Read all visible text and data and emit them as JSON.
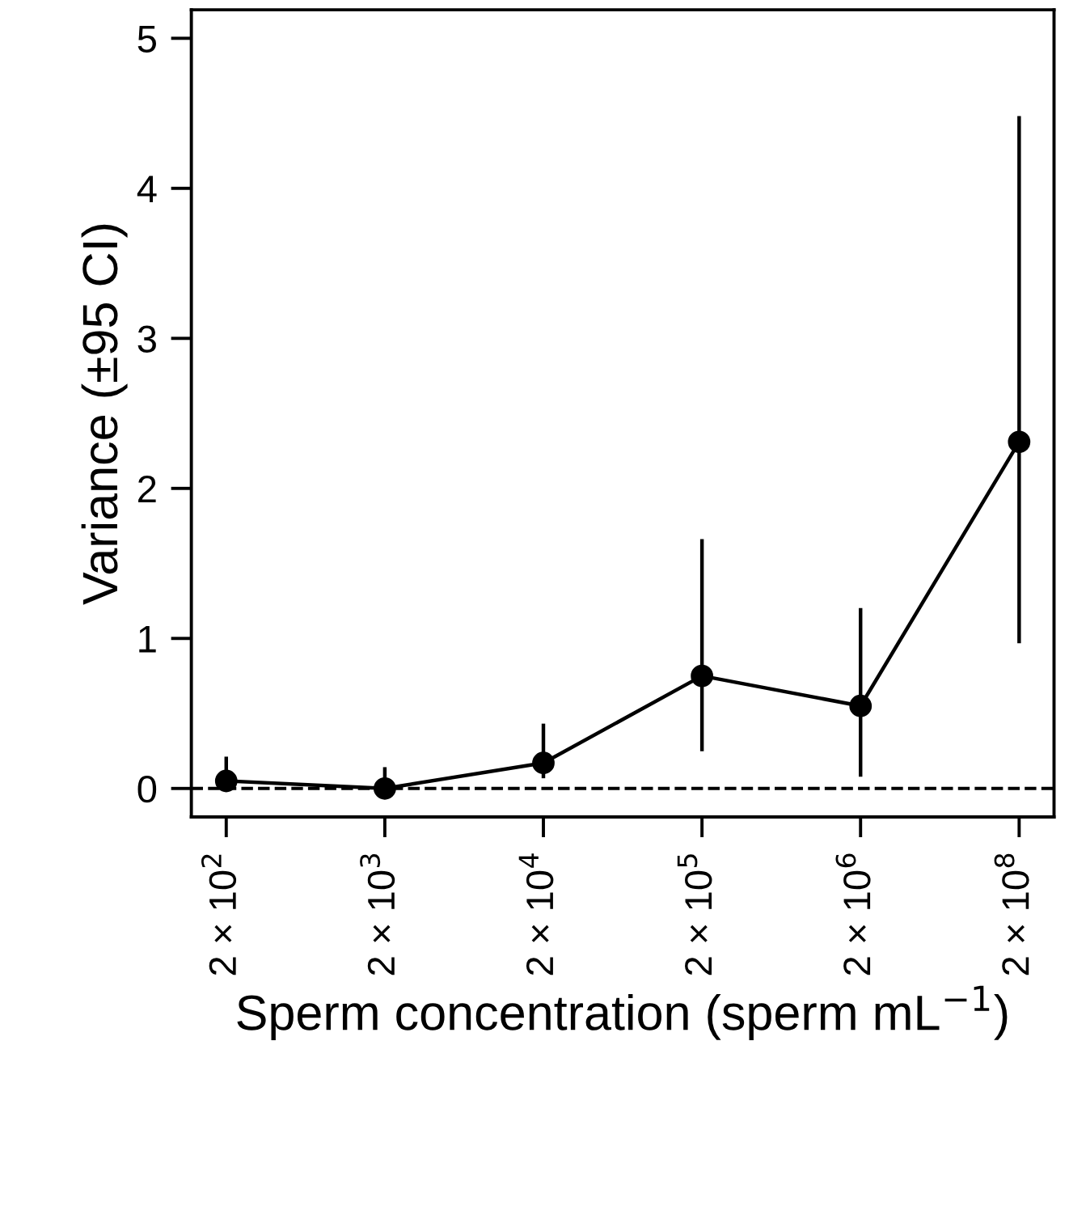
{
  "chart_data": {
    "type": "line",
    "xlabel": "Sperm concentration (sperm mL$^{−1}$)",
    "ylabel": "Variance (±95 CI)",
    "categories": [
      "2 × 10$^{2}$",
      "2 × 10$^{3}$",
      "2 × 10$^{4}$",
      "2 × 10$^{5}$",
      "2 × 10$^{6}$",
      "2 × 10$^{8}$"
    ],
    "series": [
      {
        "color": "#000000",
        "values": [
          0.05,
          0.0,
          0.17,
          0.75,
          0.55,
          2.31
        ],
        "errors": [
          [
            0.0,
            0.2
          ],
          [
            0.0,
            0.13
          ],
          [
            0.08,
            0.42
          ],
          [
            0.26,
            1.65
          ],
          [
            0.09,
            1.19
          ],
          [
            0.98,
            4.47
          ]
        ]
      }
    ],
    "ylim": [
      -0.19,
      5.19
    ],
    "yticks": [
      0,
      1,
      2,
      3,
      4,
      5
    ],
    "ref_lines": [
      {
        "axis": "y",
        "value": 0,
        "color": "#000000",
        "line_style": "dashed"
      }
    ],
    "marker": "circle",
    "line_style": "solid",
    "grid": false,
    "legend": false
  }
}
